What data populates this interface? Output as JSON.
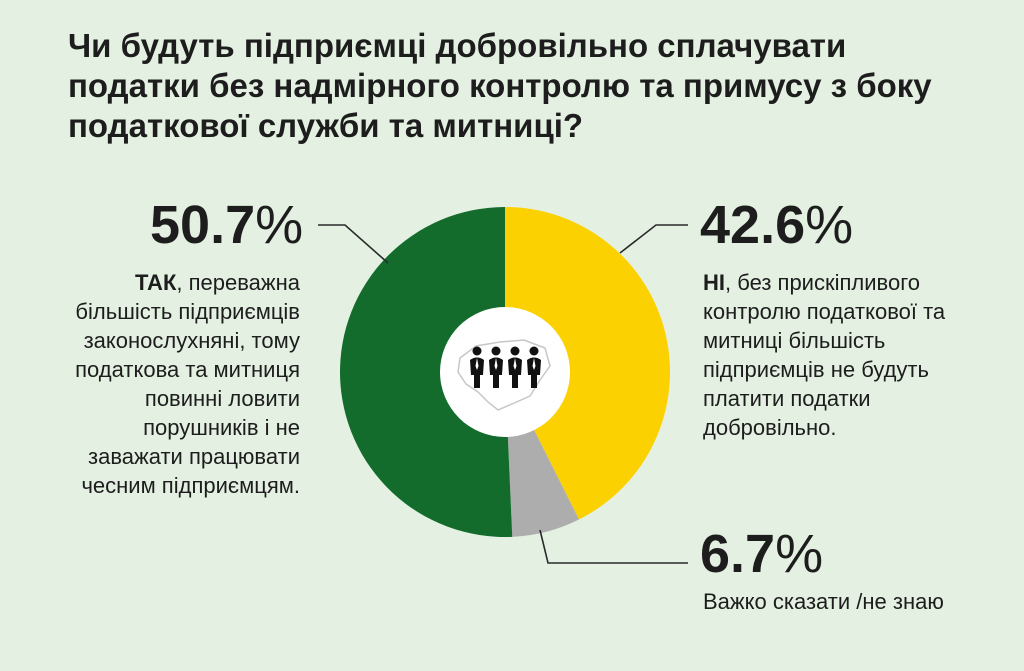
{
  "title": "Чи будуть підприємці добровільно сплачувати податки без надмірного контролю та примусу з боку податкової служби та митниці?",
  "colors": {
    "background": "#e4f1e2",
    "yes": "#136b2c",
    "no": "#fbd101",
    "dontknow": "#adadad",
    "center": "#ffffff",
    "leader": "#2a2a2a"
  },
  "center_icon": "people-over-ukraine-map-icon",
  "chart_data": {
    "type": "pie",
    "title": "Чи будуть підприємці добровільно сплачувати податки без надмірного контролю та примусу з боку податкової служби та митниці?",
    "slices": [
      {
        "key": "yes",
        "value": 50.7,
        "label_number": "50.7",
        "label_sign": "%",
        "bold": "ТАК",
        "text": ", переважна більшість підприємців законослухняні, тому податкова та митниця повинні ловити порушників і не заважати працювати чесним підприємцям.",
        "color": "#136b2c"
      },
      {
        "key": "no",
        "value": 42.6,
        "label_number": "42.6",
        "label_sign": "%",
        "bold": "НІ",
        "text": ", без прискіпливого контролю податкової та митниці більшість підприємців не будуть платити податки добровільно.",
        "color": "#fbd101"
      },
      {
        "key": "dk",
        "value": 6.7,
        "label_number": "6.7",
        "label_sign": "%",
        "bold": "",
        "text": "Важко сказати /не знаю",
        "color": "#adadad"
      }
    ]
  }
}
